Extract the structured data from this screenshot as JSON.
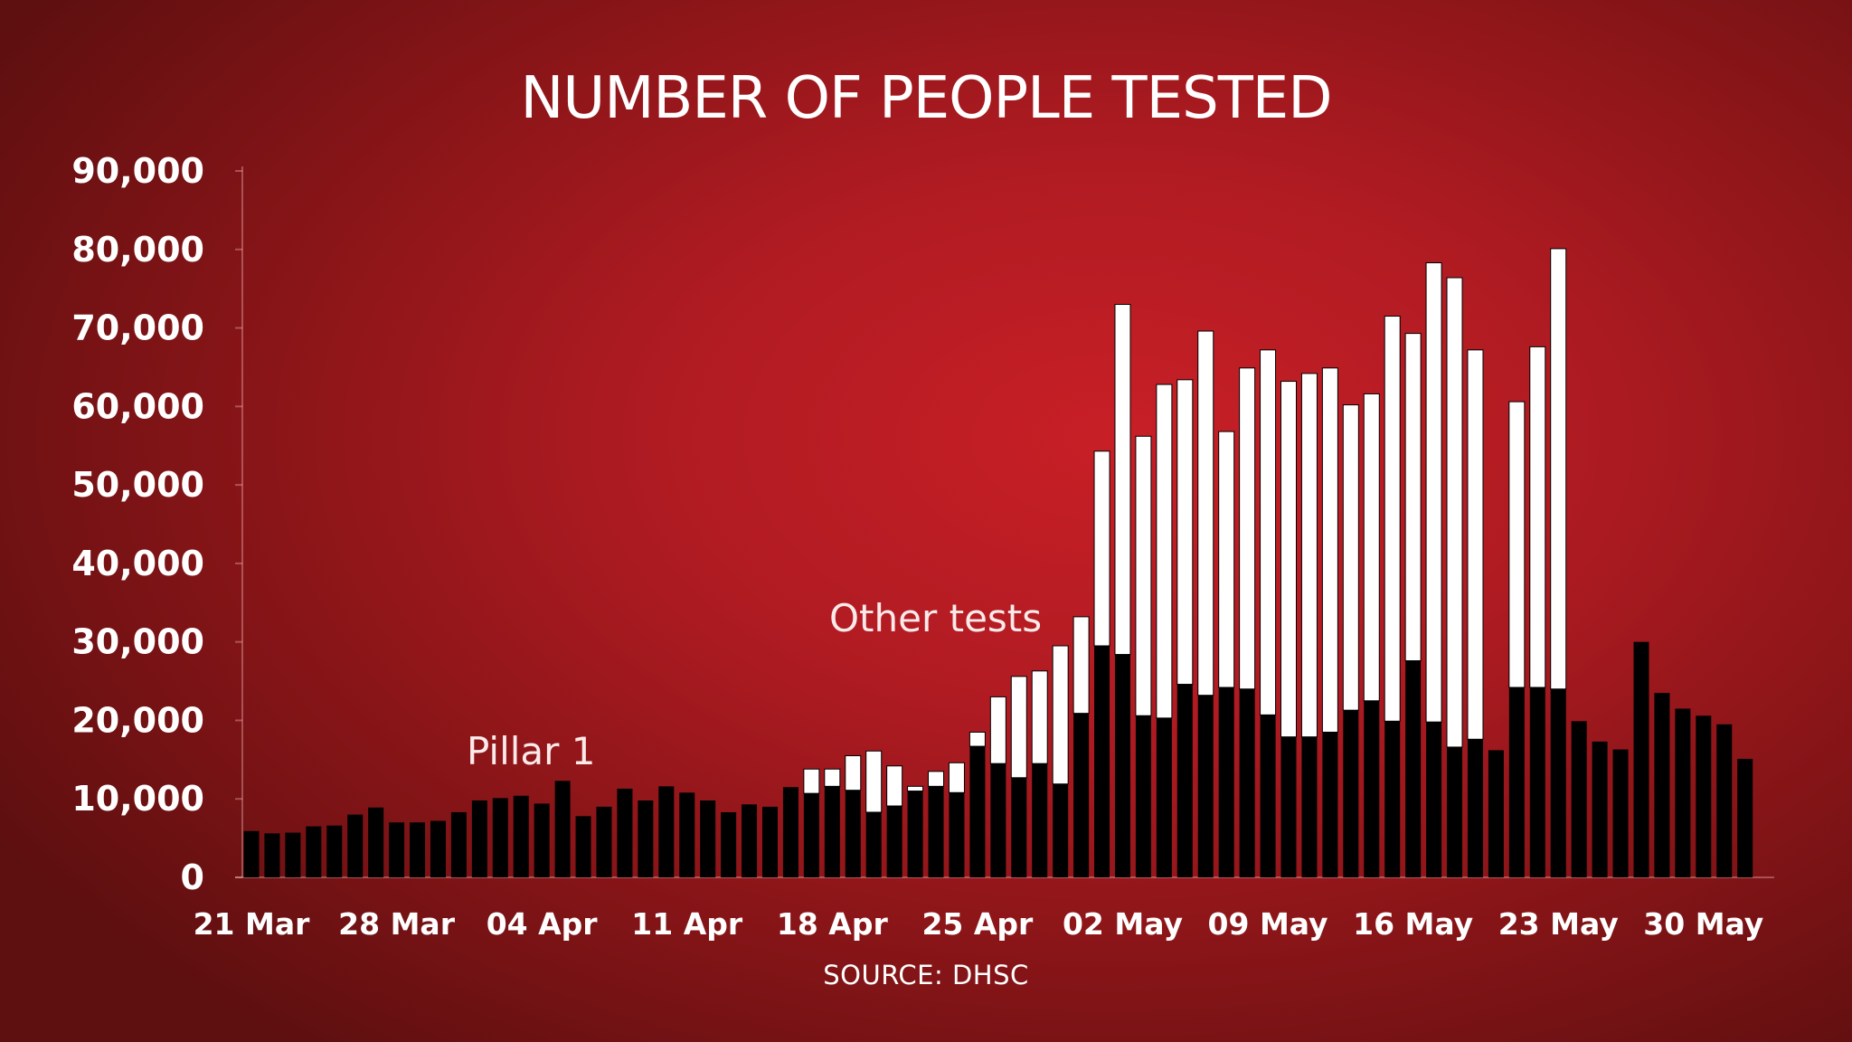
{
  "chart_data": {
    "type": "bar",
    "stacked": true,
    "title": "NUMBER OF PEOPLE TESTED",
    "source": "SOURCE: DHSC",
    "xlabel": "",
    "ylabel": "",
    "ylim": [
      0,
      90000
    ],
    "yticks": [
      "0",
      "10,000",
      "20,000",
      "30,000",
      "40,000",
      "50,000",
      "60,000",
      "70,000",
      "80,000",
      "90,000"
    ],
    "ytick_values": [
      0,
      10000,
      20000,
      30000,
      40000,
      50000,
      60000,
      70000,
      80000,
      90000
    ],
    "xtick_labels": [
      "21 Mar",
      "28 Mar",
      "04 Apr",
      "11 Apr",
      "18 Apr",
      "25 Apr",
      "02 May",
      "09 May",
      "16 May",
      "23 May",
      "30 May"
    ],
    "grid": false,
    "legend": "annotations",
    "colors": {
      "background": "#b01b22",
      "pillar1": "#000000",
      "other": "#ffffff"
    },
    "x": [
      "21 Mar",
      "22 Mar",
      "23 Mar",
      "24 Mar",
      "25 Mar",
      "26 Mar",
      "27 Mar",
      "28 Mar",
      "29 Mar",
      "30 Mar",
      "31 Mar",
      "01 Apr",
      "02 Apr",
      "03 Apr",
      "04 Apr",
      "05 Apr",
      "06 Apr",
      "07 Apr",
      "08 Apr",
      "09 Apr",
      "10 Apr",
      "11 Apr",
      "12 Apr",
      "13 Apr",
      "14 Apr",
      "15 Apr",
      "16 Apr",
      "17 Apr",
      "18 Apr",
      "19 Apr",
      "20 Apr",
      "21 Apr",
      "22 Apr",
      "23 Apr",
      "24 Apr",
      "25 Apr",
      "26 Apr",
      "27 Apr",
      "28 Apr",
      "29 Apr",
      "30 Apr",
      "01 May",
      "02 May",
      "03 May",
      "04 May",
      "05 May",
      "06 May",
      "07 May",
      "08 May",
      "09 May",
      "10 May",
      "11 May",
      "12 May",
      "13 May",
      "14 May",
      "15 May",
      "16 May",
      "17 May",
      "18 May",
      "19 May",
      "20 May",
      "21 May",
      "22 May",
      "23 May",
      "24 May",
      "25 May",
      "26 May",
      "27 May",
      "28 May",
      "29 May",
      "30 May",
      "31 May",
      "01 Jun"
    ],
    "series": [
      {
        "name": "Pillar 1",
        "values": [
          5900,
          5600,
          5700,
          6500,
          6600,
          8000,
          8900,
          7000,
          7000,
          7200,
          8300,
          9800,
          10100,
          10400,
          9400,
          12300,
          7800,
          9000,
          11300,
          9800,
          11600,
          10800,
          9800,
          8300,
          9300,
          9000,
          11500,
          10700,
          11600,
          11100,
          8300,
          9100,
          11000,
          11600,
          10800,
          16700,
          14500,
          12700,
          14500,
          11900,
          20900,
          29500,
          28400,
          20600,
          20300,
          24600,
          23200,
          24200,
          24000,
          20700,
          17900,
          17900,
          18500,
          21300,
          22500,
          19900,
          27600,
          19800,
          16600,
          17600,
          16200,
          24200,
          24200,
          24000,
          19900,
          17300,
          16300,
          30000,
          23500,
          21500,
          20600,
          19500,
          15100
        ]
      },
      {
        "name": "Other tests",
        "values": [
          0,
          0,
          0,
          0,
          0,
          0,
          0,
          0,
          0,
          0,
          0,
          0,
          0,
          0,
          0,
          0,
          0,
          0,
          0,
          0,
          0,
          0,
          0,
          0,
          0,
          0,
          0,
          3100,
          2200,
          4400,
          7800,
          5100,
          600,
          1900,
          3800,
          1800,
          8500,
          12900,
          11800,
          17600,
          12300,
          24800,
          44600,
          35600,
          42500,
          38800,
          46400,
          32600,
          40900,
          46500,
          45300,
          46300,
          46400,
          38900,
          39100,
          51600,
          41700,
          58500,
          59800,
          49600,
          0,
          36400,
          43400,
          56100,
          0,
          0,
          0,
          0,
          0,
          0,
          0,
          0,
          0
        ]
      }
    ],
    "annotations": {
      "pillar1": "Pillar 1",
      "other": "Other tests"
    }
  }
}
